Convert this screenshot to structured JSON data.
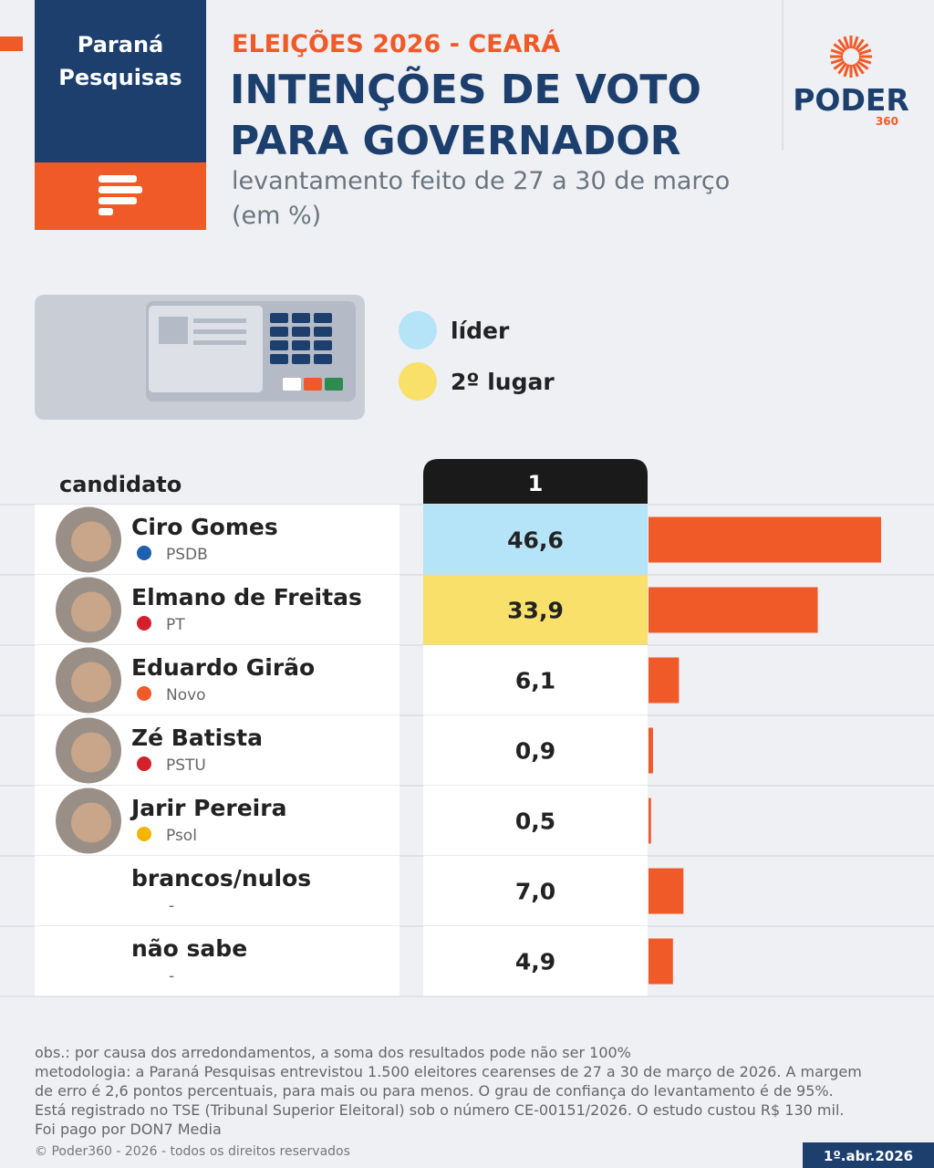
{
  "header": {
    "brand_line1": "Paraná",
    "brand_line2": "Pesquisas",
    "logo": "PODER",
    "logo_sub": "360"
  },
  "chart_data": {
    "type": "bar",
    "kicker": "ELEIÇÕES 2026 - CEARÁ",
    "title_line1": "INTENÇÕES DE VOTO",
    "title_line2": "PARA GOVERNADOR",
    "subtitle": "levantamento feito de 27 a 30 de março",
    "unit_note": "(em %)",
    "legend": [
      {
        "name": "líder",
        "color": "#b5e3f8"
      },
      {
        "name": "2º lugar",
        "color": "#f8e06a"
      }
    ],
    "category_header": "candidato",
    "column_header": "1",
    "categories": [
      "Ciro Gomes",
      "Elmano de Freitas",
      "Eduardo Girão",
      "Zé Batista",
      "Jarir Pereira",
      "brancos/nulos",
      "não sabe"
    ],
    "parties": [
      "PSDB",
      "PT",
      "Novo",
      "PSTU",
      "Psol",
      "-",
      "-"
    ],
    "values": [
      46.6,
      33.9,
      6.1,
      0.9,
      0.5,
      7.0,
      4.9
    ],
    "value_labels": [
      "46,6",
      "33,9",
      "6,1",
      "0,9",
      "0,5",
      "7,0",
      "4,9"
    ],
    "color": "#f05a28"
  },
  "footer": {
    "notes": [
      "obs.: por causa dos arredondamentos, a soma dos resultados pode não ser 100%",
      "metodologia: a Paraná Pesquisas entrevistou 1.500 eleitores cearenses de 27 a 30 de março de 2026. A margem",
      "de erro é 2,6 pontos percentuais, para mais ou para menos. O grau de confiança do levantamento é de 95%.",
      "Está registrado no TSE (Tribunal Superior Eleitoral) sob o número CE-00151/2026. O estudo custou R$ 130 mil.",
      "Foi pago por DON7 Media"
    ],
    "copyright": "© Poder360 - 2026 - todos os direitos reservados",
    "date": "1º.abr.2026"
  }
}
